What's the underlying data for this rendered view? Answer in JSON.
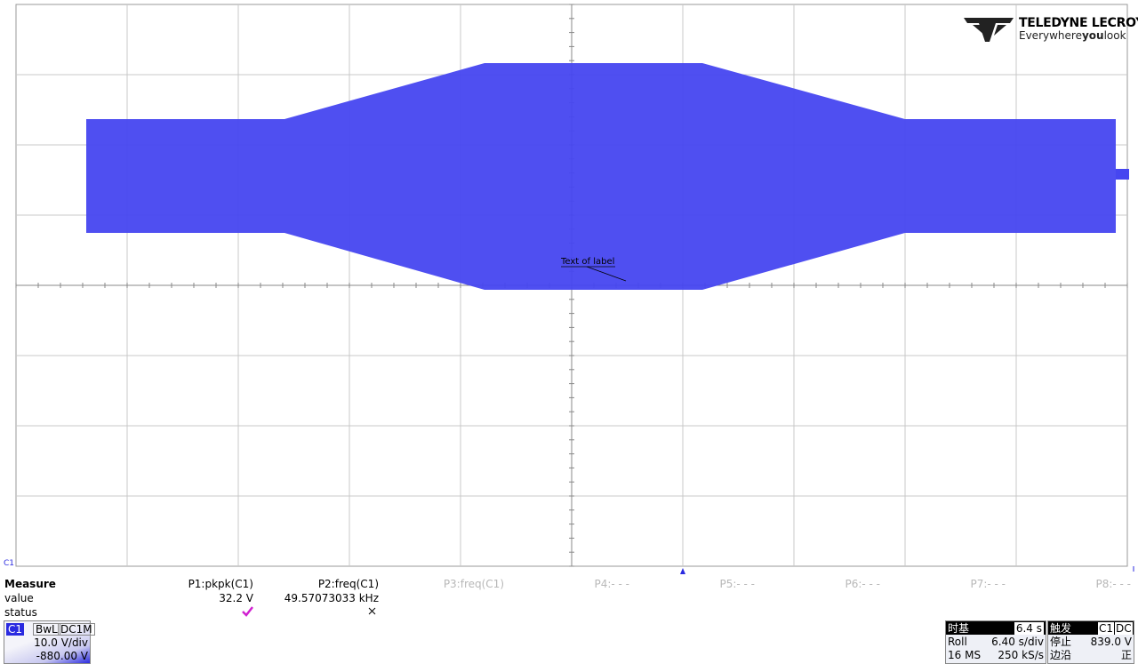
{
  "logo": {
    "brand": "TELEDYNE LECROY",
    "tagline": [
      "Everywhere",
      "you",
      "look"
    ]
  },
  "annotation": "Text of label",
  "channel_marker": "C1",
  "measure": {
    "title": "Measure",
    "row_labels": [
      "value",
      "status"
    ],
    "columns": [
      {
        "name": "P1:pkpk(C1)",
        "value": "32.2 V"
      },
      {
        "name": "P2:freq(C1)",
        "value": "49.57073033 kHz"
      },
      {
        "name": "P3:freq(C1)"
      },
      {
        "name": "P4:- - -"
      },
      {
        "name": "P5:- - -"
      },
      {
        "name": "P6:- - -"
      },
      {
        "name": "P7:- - -"
      },
      {
        "name": "P8:- - -"
      }
    ]
  },
  "channel": {
    "name": "C1",
    "bandwidth": "BwL",
    "coupling": "DC1M",
    "scale": "10.0 V/div",
    "offset": "-880.00 V"
  },
  "timebase": {
    "label": "时基",
    "delay": "6.4 s",
    "mode": "Roll",
    "scale": "6.40 s/div",
    "samples": "16 MS",
    "rate": "250 kS/s"
  },
  "trigger": {
    "label": "触发",
    "source": "C1",
    "coupling": "DC",
    "state": "停止",
    "level": "839.0 V",
    "type": "边沿",
    "slope": "正"
  }
}
